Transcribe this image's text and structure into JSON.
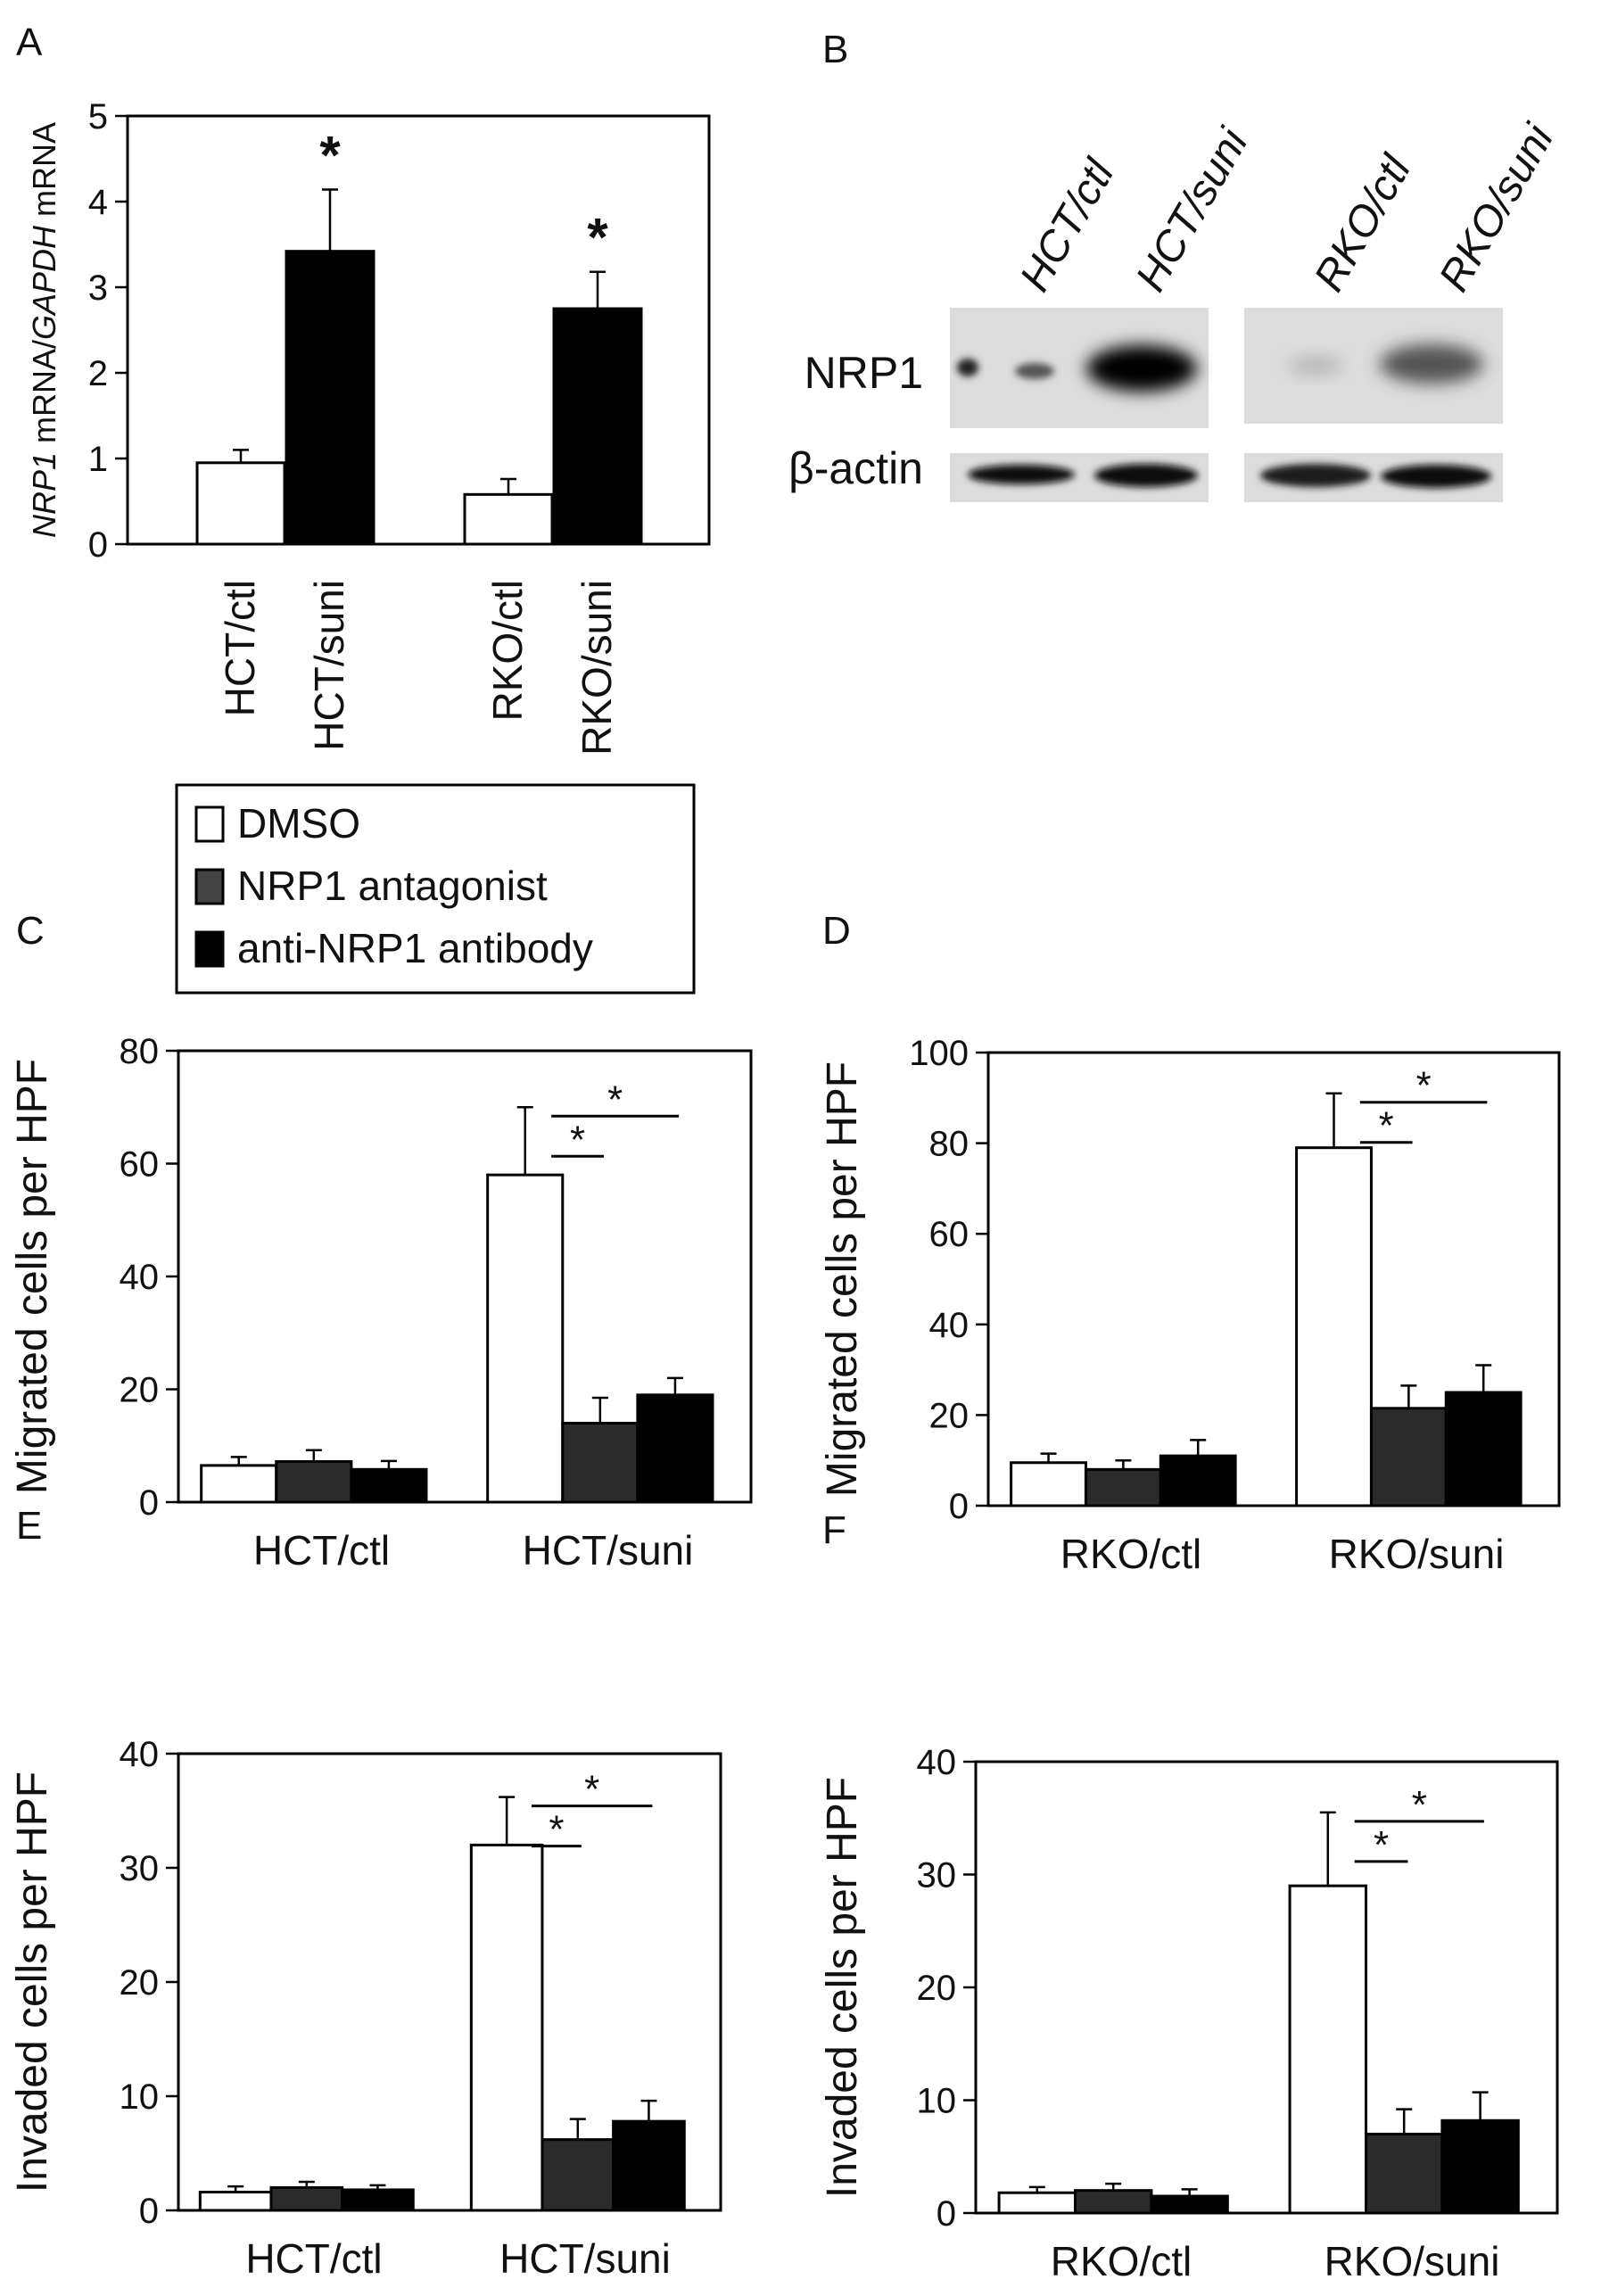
{
  "figure": {
    "panels": {
      "A": "A",
      "B": "B",
      "C": "C",
      "D": "D",
      "E": "E",
      "F": "F"
    },
    "legend": {
      "items": [
        {
          "label": "DMSO",
          "color": "#ffffff"
        },
        {
          "label": "NRP1 antagonist",
          "color": "#444444"
        },
        {
          "label": "anti-NRP1 antibody",
          "color": "#000000"
        }
      ]
    },
    "blot": {
      "lanes": [
        "HCT/ctl",
        "HCT/suni",
        "RKO/ctl",
        "RKO/suni"
      ],
      "rows": [
        "NRP1",
        "β-actin"
      ]
    },
    "significance_mark": "*"
  },
  "chart_data": [
    {
      "panel": "A",
      "type": "bar",
      "ylabel_parts": [
        {
          "text": "NRP1",
          "italic": true
        },
        {
          "text": " mRNA/",
          "italic": false
        },
        {
          "text": "GAPDH",
          "italic": true
        },
        {
          "text": " mRNA",
          "italic": false
        }
      ],
      "ylim": [
        0,
        5
      ],
      "yticks": [
        "0",
        "1",
        "2",
        "3",
        "4",
        "5"
      ],
      "categories": [
        "HCT/ctl",
        "HCT/suni",
        "RKO/ctl",
        "RKO/suni"
      ],
      "values": [
        0.95,
        3.42,
        0.58,
        2.75
      ],
      "errors": [
        0.15,
        0.72,
        0.18,
        0.43
      ],
      "colors": [
        "#ffffff",
        "#000000",
        "#ffffff",
        "#000000"
      ],
      "significant": [
        false,
        true,
        false,
        true
      ]
    },
    {
      "panel": "C",
      "type": "bar",
      "ylabel": "Migrated cells per HPF",
      "ylim": [
        0,
        80
      ],
      "yticks": [
        "0",
        "20",
        "40",
        "60",
        "80"
      ],
      "categories": [
        "HCT/ctl",
        "HCT/suni"
      ],
      "series": [
        {
          "name": "DMSO",
          "values": [
            6.5,
            58
          ],
          "errors": [
            1.5,
            12
          ]
        },
        {
          "name": "NRP1 antagonist",
          "values": [
            7.2,
            14
          ],
          "errors": [
            2.0,
            4.5
          ]
        },
        {
          "name": "anti-NRP1 antibody",
          "values": [
            5.8,
            19
          ],
          "errors": [
            1.5,
            3.0
          ]
        }
      ]
    },
    {
      "panel": "D",
      "type": "bar",
      "ylabel": "Migrated cells per HPF",
      "ylim": [
        0,
        100
      ],
      "yticks": [
        "0",
        "20",
        "40",
        "60",
        "80",
        "100"
      ],
      "categories": [
        "RKO/ctl",
        "RKO/suni"
      ],
      "series": [
        {
          "name": "DMSO",
          "values": [
            9.5,
            79
          ],
          "errors": [
            2.0,
            12
          ]
        },
        {
          "name": "NRP1 antagonist",
          "values": [
            8,
            21.5
          ],
          "errors": [
            2.0,
            5.0
          ]
        },
        {
          "name": "anti-NRP1 antibody",
          "values": [
            11,
            25
          ],
          "errors": [
            3.5,
            6.0
          ]
        }
      ]
    },
    {
      "panel": "E",
      "type": "bar",
      "ylabel": "Invaded cells per HPF",
      "ylim": [
        0,
        40
      ],
      "yticks": [
        "0",
        "10",
        "20",
        "30",
        "40"
      ],
      "categories": [
        "HCT/ctl",
        "HCT/suni"
      ],
      "series": [
        {
          "name": "DMSO",
          "values": [
            1.6,
            32
          ],
          "errors": [
            0.5,
            4.2
          ]
        },
        {
          "name": "NRP1 antagonist",
          "values": [
            2.0,
            6.2
          ],
          "errors": [
            0.5,
            1.8
          ]
        },
        {
          "name": "anti-NRP1 antibody",
          "values": [
            1.8,
            7.8
          ],
          "errors": [
            0.4,
            1.8
          ]
        }
      ]
    },
    {
      "panel": "F",
      "type": "bar",
      "ylabel": "Invaded cells per HPF",
      "ylim": [
        0,
        40
      ],
      "yticks": [
        "0",
        "10",
        "20",
        "30",
        "40"
      ],
      "categories": [
        "RKO/ctl",
        "RKO/suni"
      ],
      "series": [
        {
          "name": "DMSO",
          "values": [
            1.8,
            29
          ],
          "errors": [
            0.5,
            6.5
          ]
        },
        {
          "name": "NRP1 antagonist",
          "values": [
            2.0,
            7.0
          ],
          "errors": [
            0.6,
            2.2
          ]
        },
        {
          "name": "anti-NRP1 antibody",
          "values": [
            1.5,
            8.2
          ],
          "errors": [
            0.6,
            2.5
          ]
        }
      ]
    }
  ]
}
